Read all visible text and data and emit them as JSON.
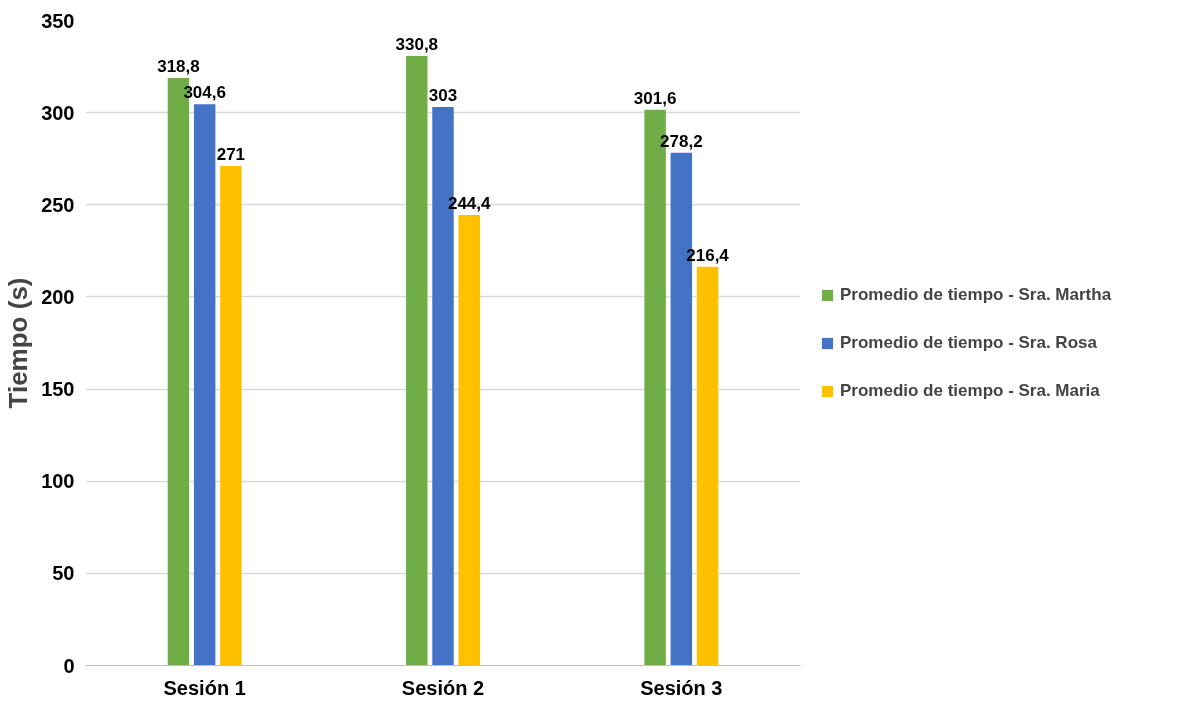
{
  "chart_data": {
    "type": "bar",
    "ylabel": "Tiempo (s)",
    "categories": [
      "Sesión 1",
      "Sesión 2",
      "Sesión 3"
    ],
    "series": [
      {
        "name": "Promedio de tiempo - Sra. Martha",
        "color": "#70ad47",
        "values": [
          318.8,
          330.8,
          301.6
        ],
        "value_labels": [
          "318,8",
          "330,8",
          "301,6"
        ]
      },
      {
        "name": "Promedio de tiempo - Sra. Rosa",
        "color": "#4472c4",
        "values": [
          304.6,
          303,
          278.2
        ],
        "value_labels": [
          "304,6",
          "303",
          "278,2"
        ]
      },
      {
        "name": "Promedio de tiempo - Sra. Maria",
        "color": "#ffc000",
        "values": [
          271,
          244.4,
          216.4
        ],
        "value_labels": [
          "271",
          "244,4",
          "216,4"
        ]
      }
    ],
    "ylim": [
      0,
      350
    ],
    "yticks": [
      0,
      50,
      100,
      150,
      200,
      250,
      300,
      350
    ],
    "grid": "y",
    "legend": "right"
  }
}
